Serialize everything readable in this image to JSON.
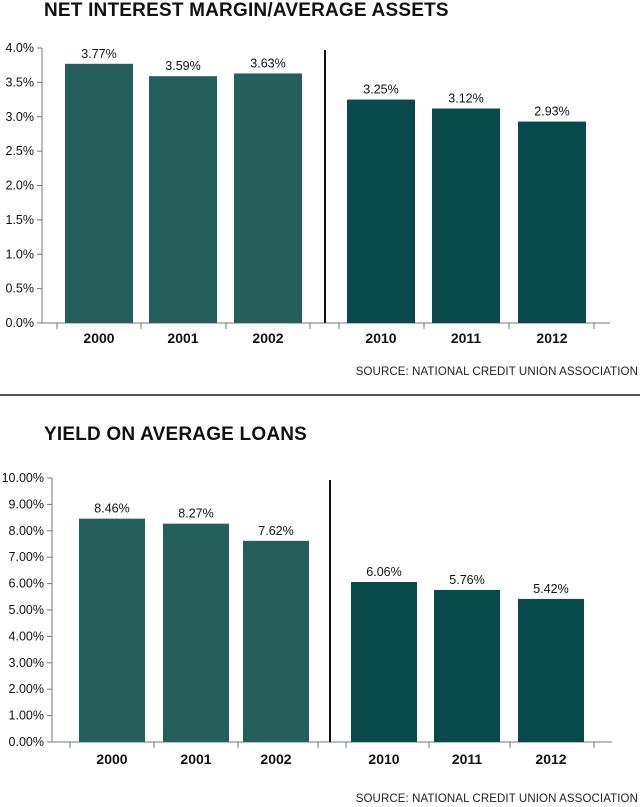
{
  "chart_data": [
    {
      "type": "bar",
      "title": "NET INTEREST MARGIN/AVERAGE ASSETS",
      "categories": [
        "2000",
        "2001",
        "2002",
        "2010",
        "2011",
        "2012"
      ],
      "values": [
        3.77,
        3.59,
        3.63,
        3.25,
        3.12,
        2.93
      ],
      "data_labels": [
        "3.77%",
        "3.59%",
        "3.63%",
        "3.25%",
        "3.12%",
        "2.93%"
      ],
      "ylim": [
        0,
        4.0
      ],
      "y_ticks": [
        0,
        0.5,
        1.0,
        1.5,
        2.0,
        2.5,
        3.0,
        3.5,
        4.0
      ],
      "y_tick_labels": [
        "0.0%",
        "0.5%",
        "1.0%",
        "1.5%",
        "2.0%",
        "2.5%",
        "3.0%",
        "3.5%",
        "4.0%"
      ],
      "bar_colors": [
        "#245f5c",
        "#245f5c",
        "#245f5c",
        "#084a4c",
        "#084a4c",
        "#084a4c"
      ],
      "separator_after_index": 2,
      "grid": false,
      "source": "SOURCE: NATIONAL CREDIT UNION ASSOCIATION"
    },
    {
      "type": "bar",
      "title": "YIELD ON AVERAGE LOANS",
      "categories": [
        "2000",
        "2001",
        "2002",
        "2010",
        "2011",
        "2012"
      ],
      "values": [
        8.46,
        8.27,
        7.62,
        6.06,
        5.76,
        5.42
      ],
      "data_labels": [
        "8.46%",
        "8.27%",
        "7.62%",
        "6.06%",
        "5.76%",
        "5.42%"
      ],
      "ylim": [
        0,
        10.0
      ],
      "y_ticks": [
        0,
        1,
        2,
        3,
        4,
        5,
        6,
        7,
        8,
        9,
        10
      ],
      "y_tick_labels": [
        "0.00%",
        "1.00%",
        "2.00%",
        "3.00%",
        "4.00%",
        "5.00%",
        "6.00%",
        "7.00%",
        "8.00%",
        "9.00%",
        "10.00%"
      ],
      "bar_colors": [
        "#245f5c",
        "#245f5c",
        "#245f5c",
        "#084a4c",
        "#084a4c",
        "#084a4c"
      ],
      "separator_after_index": 2,
      "grid": false,
      "source": "SOURCE: NATIONAL CREDIT UNION ASSOCIATION"
    }
  ]
}
